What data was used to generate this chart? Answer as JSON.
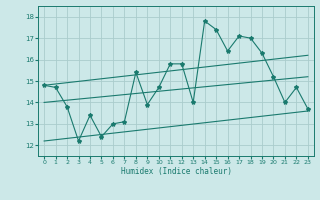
{
  "title": "",
  "xlabel": "Humidex (Indice chaleur)",
  "ylabel": "",
  "xlim": [
    -0.5,
    23.5
  ],
  "ylim": [
    11.5,
    18.5
  ],
  "xticks": [
    0,
    1,
    2,
    3,
    4,
    5,
    6,
    7,
    8,
    9,
    10,
    11,
    12,
    13,
    14,
    15,
    16,
    17,
    18,
    19,
    20,
    21,
    22,
    23
  ],
  "yticks": [
    12,
    13,
    14,
    15,
    16,
    17,
    18
  ],
  "bg_color": "#cce8e8",
  "line_color": "#1a7a6e",
  "grid_color": "#aacccc",
  "series1_x": [
    0,
    1,
    2,
    3,
    4,
    5,
    6,
    7,
    8,
    9,
    10,
    11,
    12,
    13,
    14,
    15,
    16,
    17,
    18,
    19,
    20,
    21,
    22,
    23
  ],
  "series1_y": [
    14.8,
    14.7,
    13.8,
    12.2,
    13.4,
    12.4,
    13.0,
    13.1,
    15.4,
    13.9,
    14.7,
    15.8,
    15.8,
    14.0,
    17.8,
    17.4,
    16.4,
    17.1,
    17.0,
    16.3,
    15.2,
    14.0,
    14.7,
    13.7
  ],
  "series2_x": [
    0,
    23
  ],
  "series2_y": [
    14.8,
    16.2
  ],
  "series3_x": [
    0,
    23
  ],
  "series3_y": [
    14.0,
    15.2
  ],
  "series4_x": [
    0,
    23
  ],
  "series4_y": [
    12.2,
    13.6
  ]
}
